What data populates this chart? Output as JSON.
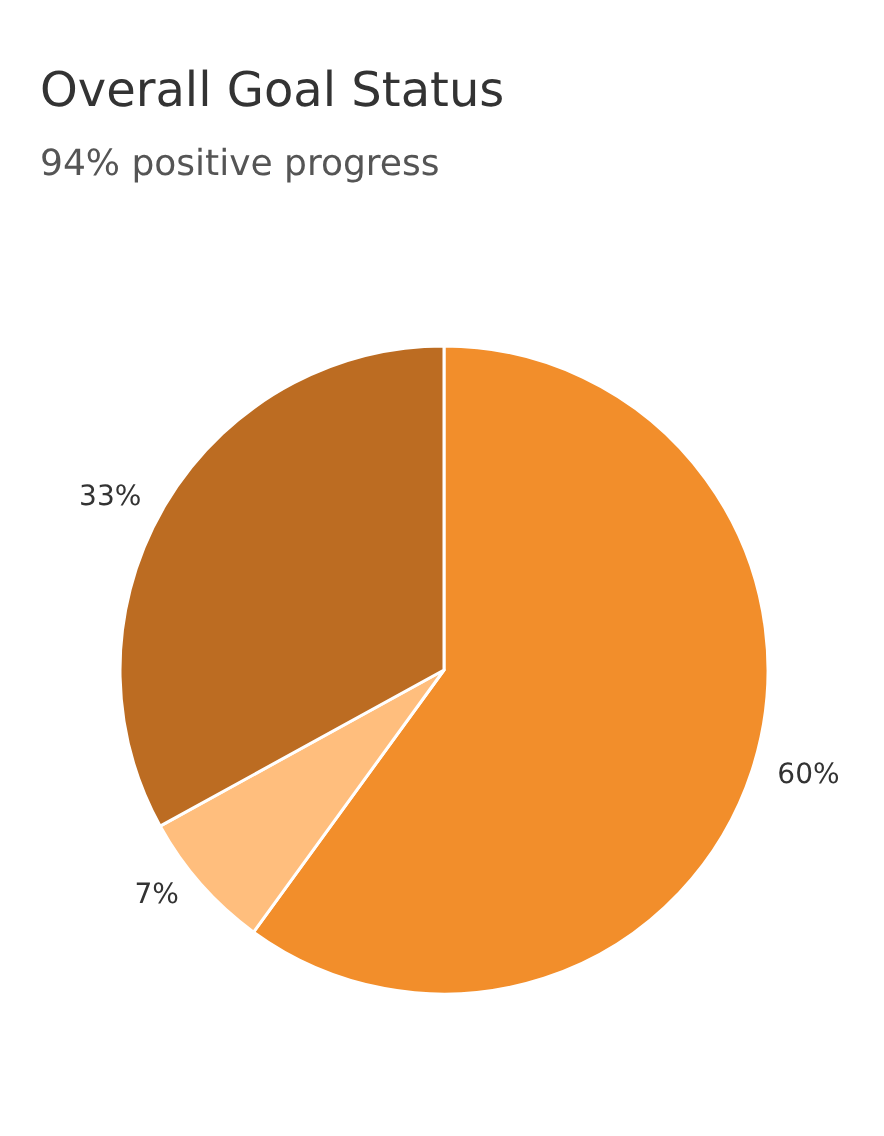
{
  "chart_data": {
    "type": "pie",
    "title": "Overall Goal Status",
    "subtitle": "94% positive progress",
    "categories": [
      null,
      null,
      null
    ],
    "values": [
      60,
      7,
      33
    ],
    "colors": [
      "#f28e2b",
      "#ffbe7d",
      "#bc6c22"
    ],
    "value_labels": [
      "60%",
      "7%",
      "33%"
    ]
  }
}
